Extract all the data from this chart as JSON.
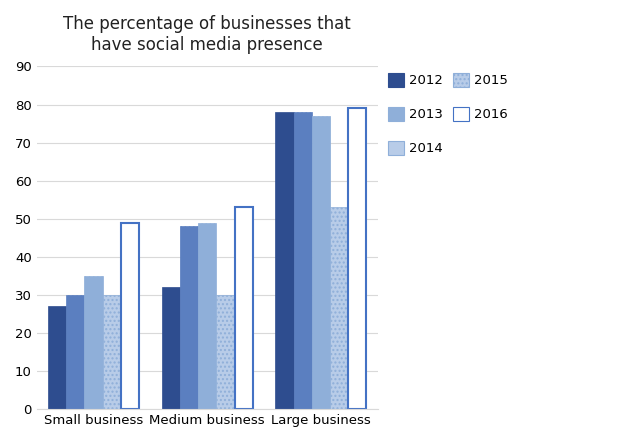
{
  "title": "The percentage of businesses that\nhave social media presence",
  "categories": [
    "Small business",
    "Medium business",
    "Large business"
  ],
  "years": [
    "2012",
    "2013",
    "2014",
    "2015",
    "2016"
  ],
  "values": {
    "Small business": [
      27,
      30,
      35,
      30,
      49
    ],
    "Medium business": [
      32,
      48,
      49,
      30,
      53
    ],
    "Large business": [
      78,
      78,
      77,
      53,
      79
    ]
  },
  "bar_styles": [
    {
      "color": "#2e4d8f",
      "edgecolor": "#2e4d8f",
      "hatch": null,
      "lw": 0.5
    },
    {
      "color": "#5b7fc0",
      "edgecolor": "#5b7fc0",
      "hatch": "||||",
      "lw": 0.5
    },
    {
      "color": "#8fafd9",
      "edgecolor": "#8fafd9",
      "hatch": "||||",
      "lw": 0.5
    },
    {
      "color": "#b8cce8",
      "edgecolor": "#8fafd9",
      "hatch": "....",
      "lw": 0.5
    },
    {
      "color": "#ffffff",
      "edgecolor": "#4472c4",
      "hatch": null,
      "lw": 1.5
    }
  ],
  "ylim": [
    0,
    90
  ],
  "yticks": [
    0,
    10,
    20,
    30,
    40,
    50,
    60,
    70,
    80,
    90
  ],
  "bar_width": 0.16,
  "group_centers": [
    0.42,
    1.42,
    2.42
  ],
  "legend_labels": [
    "2012",
    "2013",
    "2014",
    "2015",
    "2016"
  ],
  "legend_styles": [
    {
      "color": "#2e4d8f",
      "edgecolor": "#2e4d8f",
      "hatch": null
    },
    {
      "color": "#8fafd9",
      "edgecolor": "#8fafd9",
      "hatch": "||||"
    },
    {
      "color": "#b8cce8",
      "edgecolor": "#8fafd9",
      "hatch": null
    },
    {
      "color": "#b8cce8",
      "edgecolor": "#8fafd9",
      "hatch": "...."
    },
    {
      "color": "#ffffff",
      "edgecolor": "#4472c4",
      "hatch": null
    }
  ],
  "background_color": "#ffffff",
  "grid_color": "#d9d9d9"
}
